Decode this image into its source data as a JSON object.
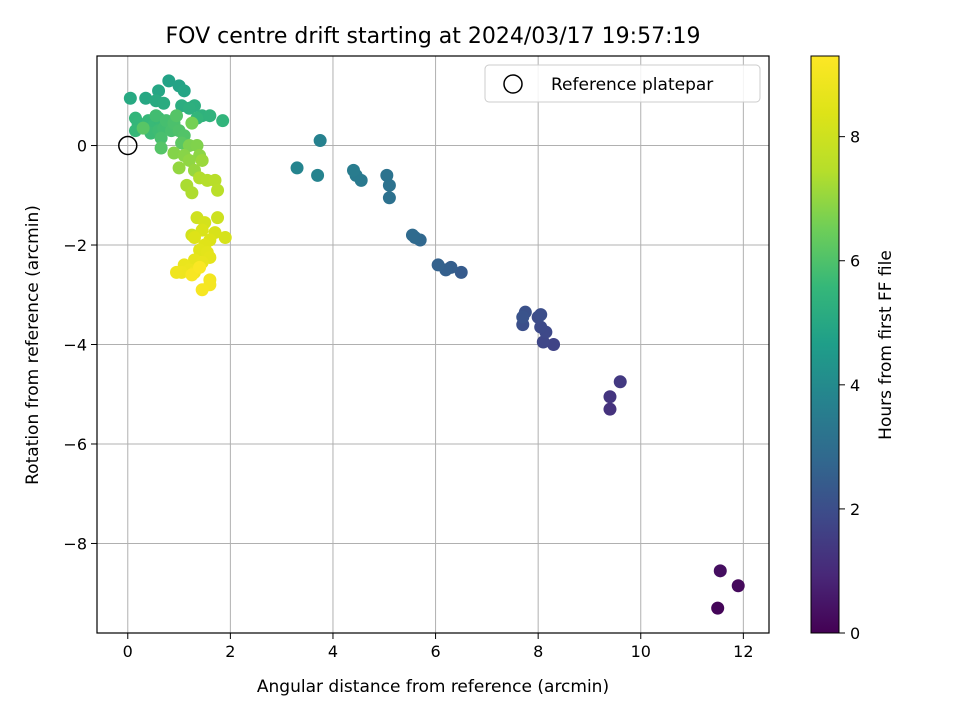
{
  "chart_data": {
    "type": "scatter",
    "title": "FOV centre drift starting at 2024/03/17 19:57:19",
    "xlabel": "Angular distance from reference (arcmin)",
    "ylabel": "Rotation from reference (arcmin)",
    "xlim": [
      -0.6,
      12.5
    ],
    "ylim": [
      -9.8,
      1.8
    ],
    "xticks": [
      0,
      2,
      4,
      6,
      8,
      10,
      12
    ],
    "yticks": [
      -8,
      -6,
      -4,
      -2,
      0
    ],
    "grid": true,
    "legend": {
      "position": "top-right",
      "entries": [
        "Reference platepar"
      ]
    },
    "reference_point": {
      "x": 0,
      "y": 0
    },
    "colorbar": {
      "label": "Hours from first FF file",
      "range": [
        0,
        9.3
      ],
      "ticks": [
        0,
        2,
        4,
        6,
        8
      ],
      "colormap": "viridis"
    },
    "points": [
      [
        11.5,
        -9.3,
        0.1
      ],
      [
        11.9,
        -8.85,
        0.2
      ],
      [
        11.55,
        -8.55,
        0.3
      ],
      [
        9.4,
        -5.3,
        1.2
      ],
      [
        9.4,
        -5.05,
        1.3
      ],
      [
        9.6,
        -4.75,
        1.4
      ],
      [
        8.3,
        -4.0,
        1.7
      ],
      [
        8.1,
        -3.95,
        1.8
      ],
      [
        8.15,
        -3.75,
        1.85
      ],
      [
        8.05,
        -3.65,
        1.9
      ],
      [
        8.0,
        -3.45,
        1.95
      ],
      [
        8.05,
        -3.4,
        2.0
      ],
      [
        7.7,
        -3.6,
        2.05
      ],
      [
        7.75,
        -3.35,
        2.1
      ],
      [
        7.7,
        -3.45,
        2.15
      ],
      [
        6.5,
        -2.55,
        2.4
      ],
      [
        6.3,
        -2.45,
        2.5
      ],
      [
        6.2,
        -2.5,
        2.55
      ],
      [
        6.05,
        -2.4,
        2.6
      ],
      [
        5.7,
        -1.9,
        2.8
      ],
      [
        5.6,
        -1.85,
        2.85
      ],
      [
        5.55,
        -1.8,
        2.9
      ],
      [
        5.1,
        -1.05,
        3.1
      ],
      [
        5.1,
        -0.8,
        3.15
      ],
      [
        5.05,
        -0.6,
        3.2
      ],
      [
        4.55,
        -0.7,
        3.4
      ],
      [
        4.45,
        -0.6,
        3.45
      ],
      [
        4.4,
        -0.5,
        3.5
      ],
      [
        3.75,
        0.1,
        3.7
      ],
      [
        3.7,
        -0.6,
        3.75
      ],
      [
        3.3,
        -0.45,
        3.8
      ],
      [
        0.8,
        1.3,
        4.8
      ],
      [
        1.0,
        1.2,
        4.85
      ],
      [
        1.1,
        1.1,
        4.9
      ],
      [
        0.6,
        1.1,
        4.95
      ],
      [
        0.35,
        0.95,
        5.0
      ],
      [
        0.05,
        0.95,
        5.05
      ],
      [
        0.55,
        0.9,
        5.1
      ],
      [
        0.7,
        0.85,
        5.15
      ],
      [
        1.05,
        0.8,
        5.2
      ],
      [
        1.3,
        0.8,
        5.25
      ],
      [
        1.2,
        0.75,
        5.3
      ],
      [
        1.45,
        0.6,
        5.35
      ],
      [
        1.6,
        0.6,
        5.4
      ],
      [
        1.85,
        0.5,
        5.45
      ],
      [
        1.35,
        0.55,
        5.5
      ],
      [
        0.15,
        0.55,
        5.5
      ],
      [
        0.2,
        0.45,
        5.55
      ],
      [
        0.15,
        0.3,
        5.6
      ],
      [
        0.4,
        0.5,
        5.6
      ],
      [
        0.5,
        0.4,
        5.65
      ],
      [
        0.6,
        0.55,
        5.65
      ],
      [
        0.45,
        0.25,
        5.7
      ],
      [
        0.6,
        0.3,
        5.75
      ],
      [
        0.7,
        0.35,
        5.8
      ],
      [
        0.55,
        0.6,
        5.8
      ],
      [
        0.75,
        0.5,
        5.85
      ],
      [
        0.85,
        0.3,
        5.9
      ],
      [
        0.65,
        0.15,
        5.9
      ],
      [
        0.9,
        0.45,
        5.95
      ],
      [
        1.0,
        0.3,
        6.0
      ],
      [
        1.1,
        0.2,
        6.05
      ],
      [
        0.65,
        -0.05,
        6.1
      ],
      [
        0.95,
        0.6,
        6.1
      ],
      [
        0.3,
        0.35,
        6.15
      ],
      [
        1.05,
        0.05,
        6.2
      ],
      [
        1.25,
        0.45,
        6.6
      ],
      [
        1.2,
        0.0,
        6.7
      ],
      [
        1.35,
        0.0,
        6.75
      ],
      [
        0.9,
        -0.15,
        6.8
      ],
      [
        1.1,
        -0.2,
        6.85
      ],
      [
        1.4,
        -0.2,
        6.9
      ],
      [
        1.2,
        -0.3,
        6.95
      ],
      [
        1.0,
        -0.45,
        7.0
      ],
      [
        1.3,
        -0.5,
        7.05
      ],
      [
        1.45,
        -0.3,
        7.1
      ],
      [
        1.15,
        -0.8,
        7.3
      ],
      [
        1.25,
        -0.95,
        7.35
      ],
      [
        1.4,
        -0.65,
        7.4
      ],
      [
        1.55,
        -0.7,
        7.45
      ],
      [
        1.7,
        -0.7,
        7.5
      ],
      [
        1.75,
        -0.9,
        7.55
      ],
      [
        1.75,
        -1.45,
        8.0
      ],
      [
        1.35,
        -1.45,
        8.05
      ],
      [
        1.25,
        -1.8,
        8.1
      ],
      [
        1.5,
        -1.55,
        8.15
      ],
      [
        1.9,
        -1.85,
        8.2
      ],
      [
        1.7,
        -1.75,
        8.25
      ],
      [
        1.45,
        -1.7,
        8.3
      ],
      [
        1.6,
        -1.9,
        8.35
      ],
      [
        1.3,
        -1.85,
        8.4
      ],
      [
        1.5,
        -2.0,
        8.45
      ],
      [
        1.4,
        -2.1,
        8.5
      ],
      [
        1.55,
        -2.15,
        8.55
      ],
      [
        1.6,
        -2.25,
        8.6
      ],
      [
        1.3,
        -2.3,
        8.65
      ],
      [
        1.45,
        -2.35,
        8.7
      ],
      [
        1.1,
        -2.4,
        8.75
      ],
      [
        1.2,
        -2.5,
        8.8
      ],
      [
        1.05,
        -2.55,
        8.85
      ],
      [
        0.95,
        -2.55,
        8.9
      ],
      [
        1.3,
        -2.55,
        8.95
      ],
      [
        1.6,
        -2.7,
        9.0
      ],
      [
        1.6,
        -2.8,
        9.05
      ],
      [
        1.45,
        -2.9,
        9.1
      ],
      [
        1.25,
        -2.6,
        9.15
      ],
      [
        1.4,
        -2.45,
        9.2
      ]
    ]
  }
}
